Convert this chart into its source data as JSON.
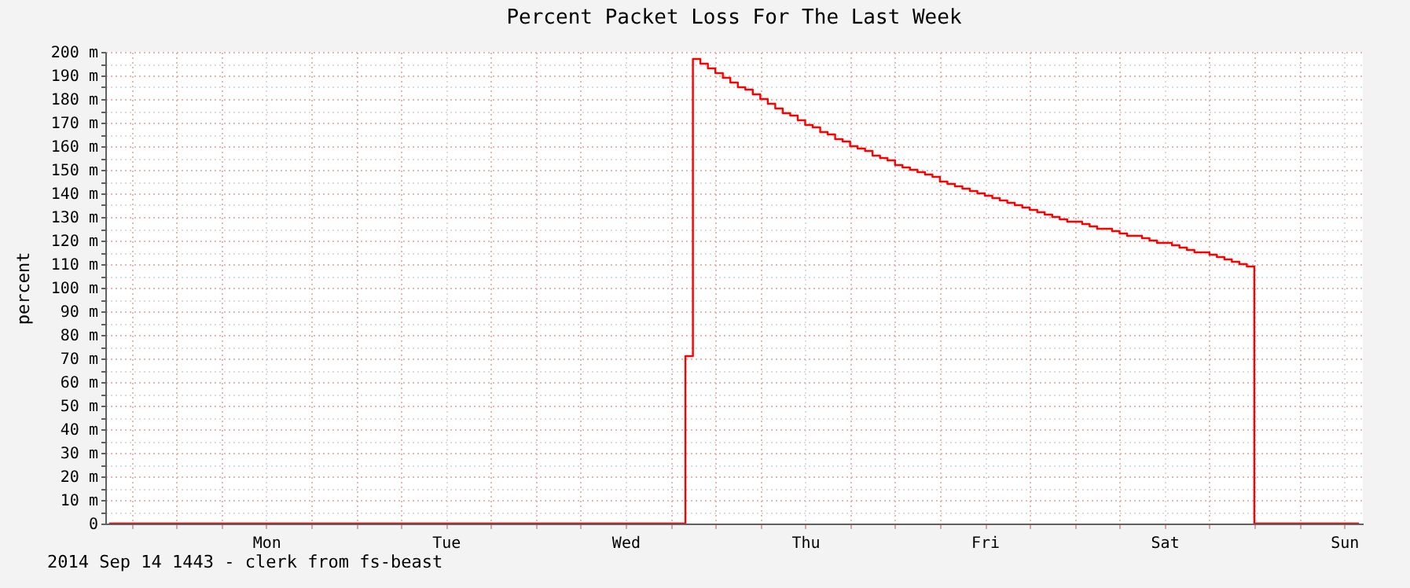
{
  "chart_data": {
    "type": "step",
    "title": "Percent Packet Loss For The Last Week",
    "ylabel": "percent",
    "annotations": [
      "2014 Sep 14 1443  -  clerk from fs-beast"
    ],
    "categories": [
      null,
      null,
      null,
      null,
      null,
      null,
      null,
      null,
      null,
      null,
      null,
      null,
      null,
      null,
      null,
      null,
      null,
      null,
      null,
      null,
      null,
      "Mon",
      null,
      null,
      null,
      null,
      null,
      null,
      null,
      null,
      null,
      null,
      null,
      null,
      null,
      null,
      null,
      null,
      null,
      null,
      null,
      null,
      null,
      null,
      null,
      "Tue",
      null,
      null,
      null,
      null,
      null,
      null,
      null,
      null,
      null,
      null,
      null,
      null,
      null,
      null,
      null,
      null,
      null,
      null,
      null,
      null,
      null,
      null,
      null,
      "Wed",
      null,
      null,
      null,
      null,
      null,
      null,
      null,
      null,
      null,
      null,
      null,
      null,
      null,
      null,
      null,
      null,
      null,
      null,
      null,
      null,
      null,
      null,
      null,
      "Thu",
      null,
      null,
      null,
      null,
      null,
      null,
      null,
      null,
      null,
      null,
      null,
      null,
      null,
      null,
      null,
      null,
      null,
      null,
      null,
      null,
      null,
      null,
      null,
      "Fri",
      null,
      null,
      null,
      null,
      null,
      null,
      null,
      null,
      null,
      null,
      null,
      null,
      null,
      null,
      null,
      null,
      null,
      null,
      null,
      null,
      null,
      null,
      null,
      "Sat",
      null,
      null,
      null,
      null,
      null,
      null,
      null,
      null,
      null,
      null,
      null,
      null,
      null,
      null,
      null,
      null,
      null,
      null,
      null,
      null,
      null,
      null,
      null,
      "Sun",
      null,
      null
    ],
    "series": [
      {
        "color": "#ff0000",
        "values": [
          0,
          0,
          0,
          0,
          0,
          0,
          0,
          0,
          0,
          0,
          0,
          0,
          0,
          0,
          0,
          0,
          0,
          0,
          0,
          0,
          0,
          0,
          0,
          0,
          0,
          0,
          0,
          0,
          0,
          0,
          0,
          0,
          0,
          0,
          0,
          0,
          0,
          0,
          0,
          0,
          0,
          0,
          0,
          0,
          0,
          0,
          0,
          0,
          0,
          0,
          0,
          0,
          0,
          0,
          0,
          0,
          0,
          0,
          0,
          0,
          0,
          0,
          0,
          0,
          0,
          0,
          0,
          0,
          0,
          0,
          0,
          0,
          0,
          0,
          0,
          0,
          0,
          71,
          197,
          195,
          193,
          191,
          189,
          187,
          185,
          184,
          182,
          180,
          178,
          176,
          174,
          173,
          171,
          169,
          168,
          166,
          165,
          163,
          162,
          160,
          159,
          158,
          156,
          155,
          154,
          152,
          151,
          150,
          149,
          148,
          147,
          145,
          144,
          143,
          142,
          141,
          140,
          139,
          138,
          137,
          136,
          135,
          134,
          133,
          132,
          131,
          130,
          129,
          128,
          128,
          127,
          126,
          125,
          125,
          124,
          123,
          122,
          122,
          121,
          120,
          119,
          119,
          118,
          117,
          116,
          115,
          115,
          114,
          113,
          112,
          111,
          110,
          109,
          0,
          0,
          0,
          0,
          0,
          0,
          0,
          0,
          0,
          0,
          0,
          0,
          0,
          0,
          0
        ]
      }
    ],
    "ylim": [
      0,
      200
    ],
    "yticks": [
      0,
      {
        "value": 5,
        "label": null
      },
      {
        "value": 10,
        "label": "10 m"
      },
      {
        "value": 15,
        "label": null
      },
      {
        "value": 20,
        "label": "20 m"
      },
      {
        "value": 25,
        "label": null
      },
      {
        "value": 30,
        "label": "30 m"
      },
      {
        "value": 35,
        "label": null
      },
      {
        "value": 40,
        "label": "40 m"
      },
      {
        "value": 45,
        "label": null
      },
      {
        "value": 50,
        "label": "50 m"
      },
      {
        "value": 55,
        "label": null
      },
      {
        "value": 60,
        "label": "60 m"
      },
      {
        "value": 65,
        "label": null
      },
      {
        "value": 70,
        "label": "70 m"
      },
      {
        "value": 75,
        "label": null
      },
      {
        "value": 80,
        "label": "80 m"
      },
      {
        "value": 85,
        "label": null
      },
      {
        "value": 90,
        "label": "90 m"
      },
      {
        "value": 95,
        "label": null
      },
      {
        "value": 100,
        "label": "100 m"
      },
      {
        "value": 105,
        "label": null
      },
      {
        "value": 110,
        "label": "110 m"
      },
      {
        "value": 115,
        "label": null
      },
      {
        "value": 120,
        "label": "120 m"
      },
      {
        "value": 125,
        "label": null
      },
      {
        "value": 130,
        "label": "130 m"
      },
      {
        "value": 135,
        "label": null
      },
      {
        "value": 140,
        "label": "140 m"
      },
      {
        "value": 145,
        "label": null
      },
      {
        "value": 150,
        "label": "150 m"
      },
      {
        "value": 155,
        "label": null
      },
      {
        "value": 160,
        "label": "160 m"
      },
      {
        "value": 165,
        "label": null
      },
      {
        "value": 170,
        "label": "170 m"
      },
      {
        "value": 175,
        "label": null
      },
      {
        "value": 180,
        "label": "180 m"
      },
      {
        "value": 185,
        "label": null
      },
      {
        "value": 190,
        "label": "190 m"
      },
      {
        "value": 195,
        "label": null
      },
      {
        "value": 200,
        "label": "200 m"
      }
    ],
    "grid": true,
    "line_style": "solid",
    "marker": "none"
  }
}
